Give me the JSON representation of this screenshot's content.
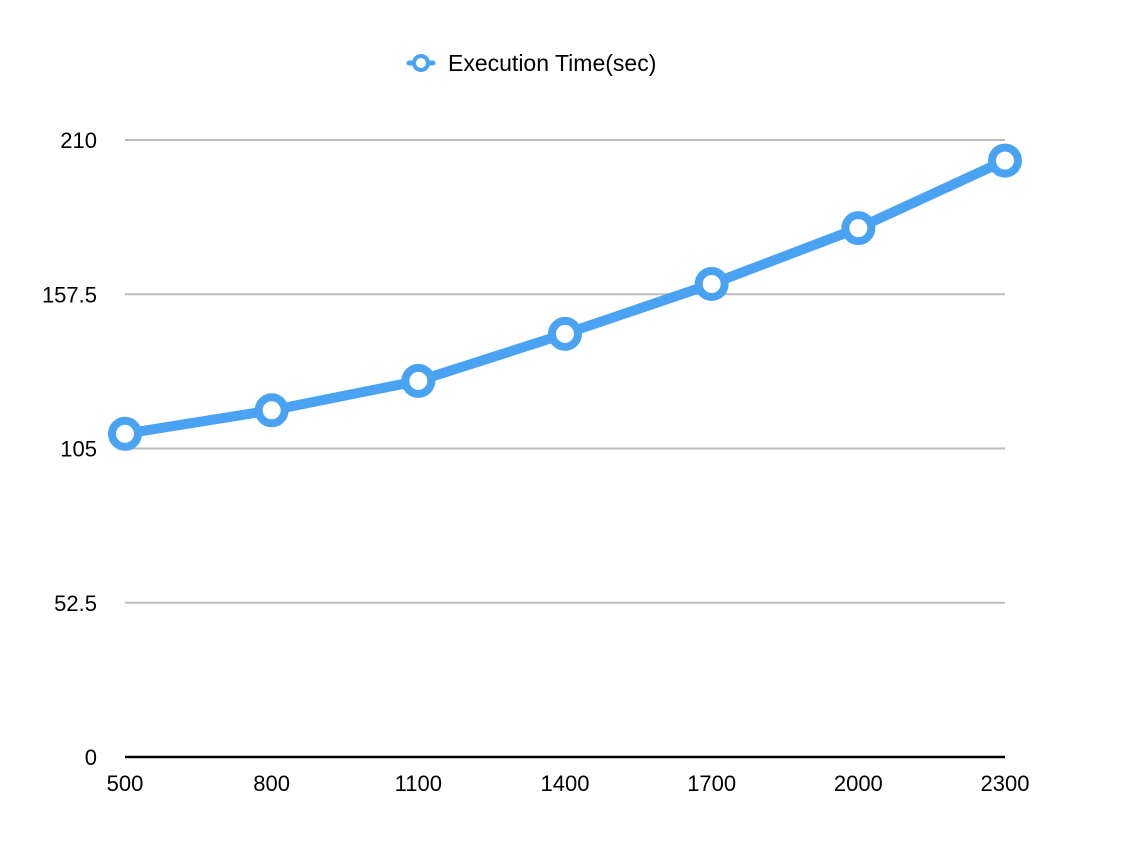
{
  "chart_data": {
    "type": "line",
    "title": "",
    "xlabel": "",
    "ylabel": "",
    "x": [
      500,
      800,
      1100,
      1400,
      1700,
      2000,
      2300
    ],
    "series": [
      {
        "name": "Execution Time(sec)",
        "values": [
          110,
          118,
          128,
          144,
          161,
          180,
          203
        ]
      }
    ],
    "y_ticks": [
      0,
      52.5,
      105,
      157.5,
      210
    ],
    "ylim": [
      0,
      210
    ],
    "grid": true,
    "legend_position": "top-center",
    "colors": {
      "series": "#4aa3f2",
      "grid": "#bdbdbd",
      "axis": "#000000",
      "marker_fill": "#ffffff",
      "text": "#000000"
    }
  }
}
